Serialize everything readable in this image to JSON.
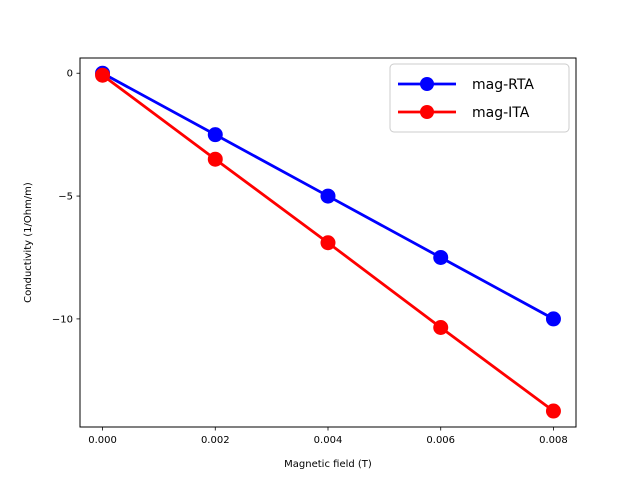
{
  "chart_data": {
    "type": "line",
    "title": "",
    "xlabel": "Magnetic field (T)",
    "ylabel": "Conductivity (1/Ohm/m)",
    "x": [
      0.0,
      0.002,
      0.004,
      0.006,
      0.008
    ],
    "xlim": [
      -0.0004,
      0.0084
    ],
    "ylim": [
      -14.4,
      0.62
    ],
    "xticks": [
      0.0,
      0.002,
      0.004,
      0.006,
      0.008
    ],
    "xtick_labels": [
      "0.000",
      "0.002",
      "0.004",
      "0.006",
      "0.008"
    ],
    "yticks": [
      0,
      -5,
      -10
    ],
    "ytick_labels": [
      "0",
      "−5",
      "−10"
    ],
    "grid": false,
    "legend_position": "top-right",
    "series": [
      {
        "name": "mag-RTA",
        "color": "#0000ff",
        "values": [
          0.0,
          -2.5,
          -5.0,
          -7.5,
          -10.0
        ]
      },
      {
        "name": "mag-ITA",
        "color": "#ff0000",
        "values": [
          -0.08,
          -3.5,
          -6.9,
          -10.35,
          -13.75
        ]
      }
    ]
  }
}
